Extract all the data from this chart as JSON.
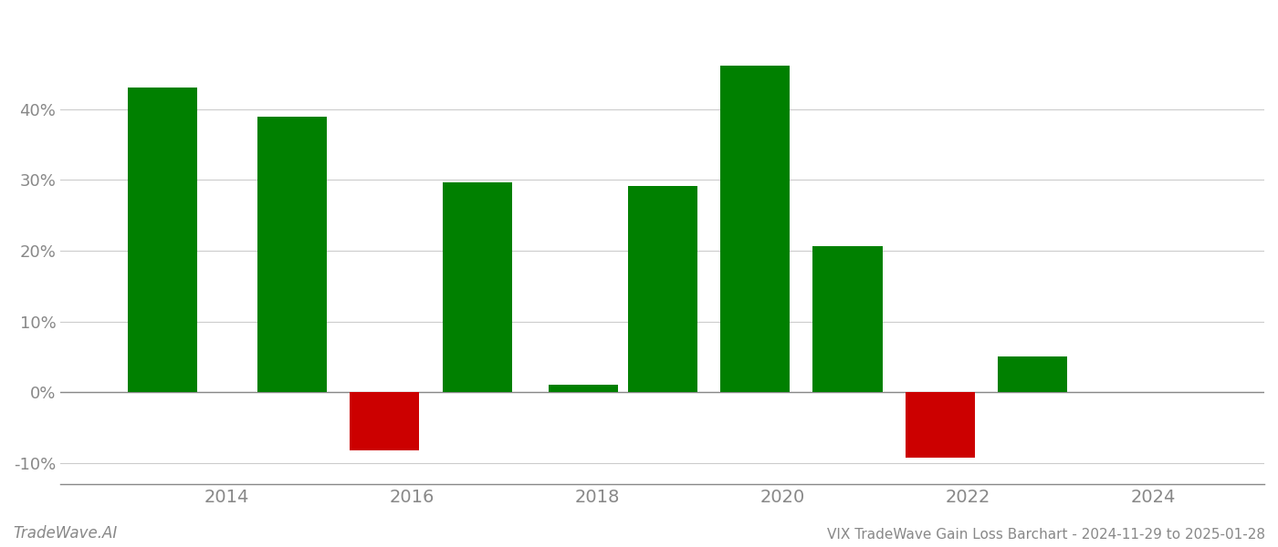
{
  "x_positions": [
    2013.3,
    2014.7,
    2015.7,
    2016.7,
    2017.85,
    2018.7,
    2019.7,
    2020.7,
    2021.7,
    2022.7,
    2023.7
  ],
  "values": [
    0.43,
    0.39,
    -0.082,
    0.296,
    0.01,
    0.292,
    0.462,
    0.206,
    -0.093,
    0.051,
    null
  ],
  "bar_colors": [
    "#008000",
    "#008000",
    "#cc0000",
    "#008000",
    "#008000",
    "#008000",
    "#008000",
    "#008000",
    "#cc0000",
    "#008000",
    null
  ],
  "title": "VIX TradeWave Gain Loss Barchart - 2024-11-29 to 2025-01-28",
  "watermark": "TradeWave.AI",
  "ylim_min": -0.13,
  "ylim_max": 0.535,
  "yticks": [
    -0.1,
    0.0,
    0.1,
    0.2,
    0.3,
    0.4
  ],
  "xlim_min": 2012.2,
  "xlim_max": 2025.2,
  "xticks": [
    2014,
    2016,
    2018,
    2020,
    2022,
    2024
  ],
  "background_color": "#ffffff",
  "grid_color": "#cccccc",
  "axis_color": "#888888",
  "tick_label_color": "#888888",
  "bar_width": 0.75
}
